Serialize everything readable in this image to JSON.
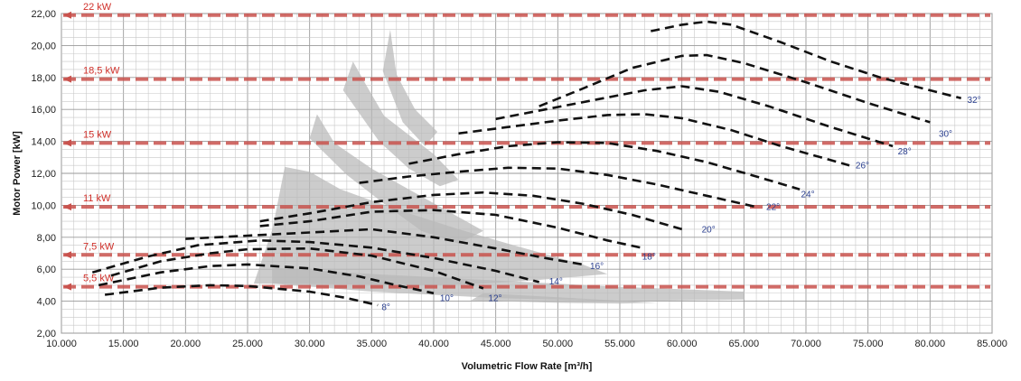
{
  "chart_data": {
    "type": "line",
    "xlabel": "Volumetric Flow Rate  [m³/h]",
    "ylabel": "Motor Power [kW]",
    "xlim": [
      10000,
      85000
    ],
    "ylim": [
      2,
      22
    ],
    "x_ticks": [
      "10.000",
      "15.000",
      "20.000",
      "25.000",
      "30.000",
      "35.000",
      "40.000",
      "45.000",
      "50.000",
      "55.000",
      "60.000",
      "65.000",
      "70.000",
      "75.000",
      "80.000",
      "85.000"
    ],
    "x_tick_values": [
      10000,
      15000,
      20000,
      25000,
      30000,
      35000,
      40000,
      45000,
      50000,
      55000,
      60000,
      65000,
      70000,
      75000,
      80000,
      85000
    ],
    "y_ticks": [
      "2,00",
      "4,00",
      "6,00",
      "8,00",
      "10,00",
      "12,00",
      "14,00",
      "16,00",
      "18,00",
      "20,00",
      "22,00"
    ],
    "y_tick_values": [
      2,
      4,
      6,
      8,
      10,
      12,
      14,
      16,
      18,
      20,
      22
    ],
    "grid": true,
    "colors": {
      "series": "#111111",
      "reference": "#c9524d",
      "reference_label": "#d0302a",
      "angle_label": "#2a3f8f",
      "band": "#b8b8b8",
      "grid": "#b5b5b5"
    },
    "reference_lines": [
      {
        "label": "22 kW",
        "value": 21.9
      },
      {
        "label": "18,5 kW",
        "value": 17.9
      },
      {
        "label": "15 kW",
        "value": 13.9
      },
      {
        "label": "11 kW",
        "value": 9.9
      },
      {
        "label": "7,5 kW",
        "value": 6.9
      },
      {
        "label": "5,5 kW",
        "value": 4.9
      }
    ],
    "series": [
      {
        "name": "8°",
        "label_at": [
          35800,
          3.45
        ],
        "points": [
          [
            13500,
            4.4
          ],
          [
            18000,
            4.85
          ],
          [
            22000,
            5.0
          ],
          [
            25000,
            4.95
          ],
          [
            30000,
            4.6
          ],
          [
            33000,
            4.2
          ],
          [
            35500,
            3.75
          ]
        ]
      },
      {
        "name": "10°",
        "label_at": [
          40500,
          4.0
        ],
        "points": [
          [
            13000,
            5.0
          ],
          [
            18000,
            5.8
          ],
          [
            22000,
            6.2
          ],
          [
            25000,
            6.3
          ],
          [
            30000,
            6.05
          ],
          [
            34000,
            5.55
          ],
          [
            37000,
            5.0
          ],
          [
            40000,
            4.5
          ]
        ]
      },
      {
        "name": "12°",
        "label_at": [
          44400,
          4.0
        ],
        "points": [
          [
            14000,
            5.6
          ],
          [
            18000,
            6.5
          ],
          [
            22000,
            7.0
          ],
          [
            25000,
            7.25
          ],
          [
            30000,
            7.3
          ],
          [
            35000,
            6.85
          ],
          [
            40000,
            5.9
          ],
          [
            44000,
            4.8
          ]
        ]
      },
      {
        "name": "14°",
        "label_at": [
          49300,
          5.05
        ],
        "points": [
          [
            12500,
            5.8
          ],
          [
            17000,
            6.8
          ],
          [
            21000,
            7.5
          ],
          [
            26000,
            7.8
          ],
          [
            30000,
            7.7
          ],
          [
            35000,
            7.35
          ],
          [
            40000,
            6.7
          ],
          [
            45000,
            5.9
          ],
          [
            48500,
            5.2
          ]
        ]
      },
      {
        "name": "16°",
        "label_at": [
          52600,
          6.0
        ],
        "points": [
          [
            20000,
            7.9
          ],
          [
            25000,
            8.1
          ],
          [
            30000,
            8.3
          ],
          [
            35000,
            8.5
          ],
          [
            40000,
            8.0
          ],
          [
            45000,
            7.3
          ],
          [
            49000,
            6.7
          ],
          [
            52000,
            6.3
          ]
        ]
      },
      {
        "name": "18°",
        "label_at": [
          56800,
          6.6
        ],
        "points": [
          [
            26000,
            8.7
          ],
          [
            30000,
            9.0
          ],
          [
            35000,
            9.6
          ],
          [
            40000,
            9.7
          ],
          [
            45000,
            9.4
          ],
          [
            50000,
            8.6
          ],
          [
            54000,
            7.8
          ],
          [
            57000,
            7.3
          ]
        ]
      },
      {
        "name": "20°",
        "label_at": [
          61600,
          8.3
        ],
        "points": [
          [
            26000,
            9.0
          ],
          [
            30000,
            9.5
          ],
          [
            35000,
            10.2
          ],
          [
            40000,
            10.65
          ],
          [
            44000,
            10.8
          ],
          [
            48000,
            10.6
          ],
          [
            52000,
            10.1
          ],
          [
            56000,
            9.4
          ],
          [
            60000,
            8.5
          ]
        ]
      },
      {
        "name": "22°",
        "label_at": [
          66800,
          9.7
        ],
        "points": [
          [
            34000,
            11.4
          ],
          [
            38000,
            11.8
          ],
          [
            42000,
            12.1
          ],
          [
            46000,
            12.35
          ],
          [
            50000,
            12.3
          ],
          [
            54000,
            11.9
          ],
          [
            58000,
            11.3
          ],
          [
            62000,
            10.6
          ],
          [
            66000,
            9.9
          ]
        ]
      },
      {
        "name": "24°",
        "label_at": [
          69600,
          10.5
        ],
        "points": [
          [
            38000,
            12.6
          ],
          [
            42000,
            13.2
          ],
          [
            46000,
            13.7
          ],
          [
            50000,
            13.95
          ],
          [
            54000,
            13.9
          ],
          [
            58000,
            13.4
          ],
          [
            62000,
            12.7
          ],
          [
            66000,
            11.8
          ],
          [
            69500,
            11.0
          ]
        ]
      },
      {
        "name": "26°",
        "label_at": [
          74000,
          12.3
        ],
        "points": [
          [
            42000,
            14.5
          ],
          [
            46000,
            14.9
          ],
          [
            50000,
            15.3
          ],
          [
            54000,
            15.65
          ],
          [
            57000,
            15.7
          ],
          [
            60000,
            15.45
          ],
          [
            64000,
            14.7
          ],
          [
            68000,
            13.7
          ],
          [
            73500,
            12.5
          ]
        ]
      },
      {
        "name": "28°",
        "label_at": [
          77400,
          13.2
        ],
        "points": [
          [
            45000,
            15.4
          ],
          [
            49000,
            16.0
          ],
          [
            53000,
            16.6
          ],
          [
            57000,
            17.2
          ],
          [
            60000,
            17.45
          ],
          [
            63000,
            17.1
          ],
          [
            67000,
            16.2
          ],
          [
            72000,
            14.9
          ],
          [
            77000,
            13.7
          ]
        ]
      },
      {
        "name": "30°",
        "label_at": [
          80700,
          14.3
        ],
        "points": [
          [
            48500,
            16.2
          ],
          [
            52000,
            17.3
          ],
          [
            56000,
            18.6
          ],
          [
            60000,
            19.35
          ],
          [
            62000,
            19.4
          ],
          [
            65000,
            18.9
          ],
          [
            70000,
            17.7
          ],
          [
            75000,
            16.4
          ],
          [
            80000,
            15.2
          ]
        ]
      },
      {
        "name": "32°",
        "label_at": [
          83000,
          16.4
        ],
        "points": [
          [
            57500,
            20.9
          ],
          [
            60000,
            21.3
          ],
          [
            62000,
            21.5
          ],
          [
            64000,
            21.3
          ],
          [
            68000,
            20.2
          ],
          [
            72000,
            19.0
          ],
          [
            76000,
            18.0
          ],
          [
            80000,
            17.2
          ],
          [
            82500,
            16.7
          ]
        ]
      }
    ],
    "bands": [
      [
        [
          25500,
          5.1
        ],
        [
          27000,
          8.5
        ],
        [
          28000,
          12.4
        ],
        [
          30000,
          12.1
        ],
        [
          32500,
          11.0
        ],
        [
          35000,
          10.3
        ],
        [
          38000,
          9.5
        ],
        [
          42000,
          8.5
        ],
        [
          46000,
          7.6
        ],
        [
          52000,
          6.3
        ],
        [
          54000,
          5.7
        ],
        [
          48000,
          5.3
        ],
        [
          44000,
          5.1
        ],
        [
          40000,
          5.0
        ]
      ],
      [
        [
          30000,
          14.2
        ],
        [
          30600,
          15.7
        ],
        [
          32000,
          13.9
        ],
        [
          35000,
          12.3
        ],
        [
          38000,
          11.0
        ],
        [
          41000,
          9.7
        ],
        [
          44000,
          8.4
        ],
        [
          42000,
          7.6
        ],
        [
          39000,
          8.4
        ],
        [
          36000,
          10.1
        ],
        [
          33000,
          11.9
        ]
      ],
      [
        [
          32700,
          17.2
        ],
        [
          33500,
          19.0
        ],
        [
          34500,
          17.6
        ],
        [
          36000,
          15.6
        ],
        [
          38000,
          14.4
        ],
        [
          40000,
          13.2
        ],
        [
          42000,
          11.6
        ],
        [
          40500,
          11.2
        ],
        [
          38000,
          12.3
        ],
        [
          35600,
          14.0
        ]
      ],
      [
        [
          35900,
          18.4
        ],
        [
          36500,
          21.0
        ],
        [
          37000,
          18.2
        ],
        [
          38500,
          16.0
        ],
        [
          40300,
          14.6
        ],
        [
          39300,
          13.7
        ],
        [
          37500,
          15.2
        ]
      ],
      [
        [
          27000,
          5.1
        ],
        [
          35000,
          4.6
        ],
        [
          45000,
          4.2
        ],
        [
          55000,
          4.0
        ],
        [
          65000,
          4.1
        ],
        [
          65000,
          4.6
        ],
        [
          55000,
          4.9
        ],
        [
          45000,
          5.3
        ],
        [
          35000,
          5.7
        ],
        [
          27000,
          6.1
        ]
      ],
      [
        [
          43000,
          4.05
        ],
        [
          50000,
          3.9
        ],
        [
          55000,
          3.85
        ],
        [
          58000,
          3.9
        ],
        [
          50000,
          4.25
        ],
        [
          44000,
          4.5
        ]
      ]
    ]
  }
}
